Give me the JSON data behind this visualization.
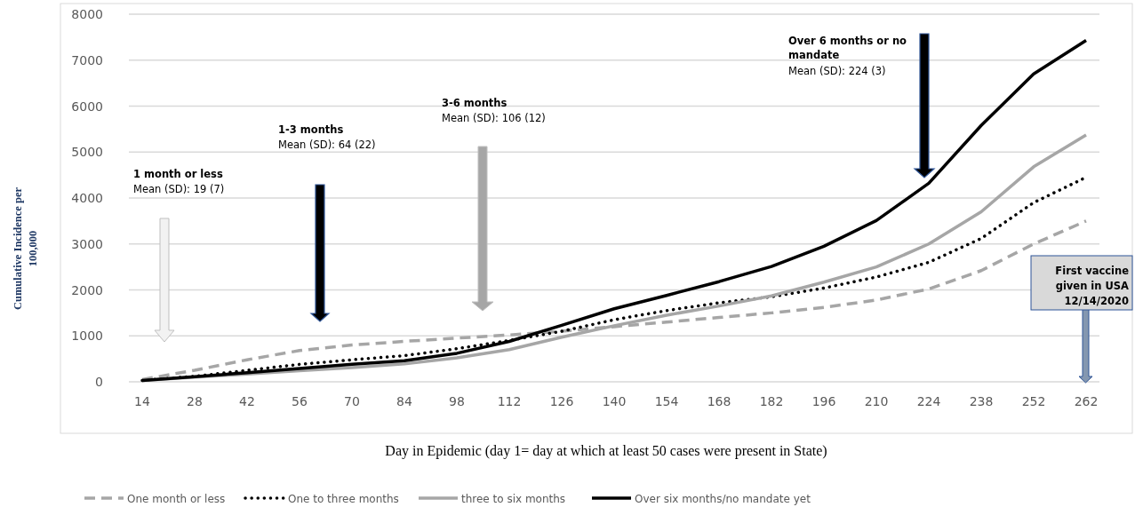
{
  "chart_data": {
    "type": "line",
    "xlabel": "Day in Epidemic (day 1= day at which at least 50 cases were present in State)",
    "ylabel": "Cumulative Incidence per 100,000",
    "categories": [
      "14",
      "28",
      "42",
      "56",
      "70",
      "84",
      "98",
      "112",
      "126",
      "140",
      "154",
      "168",
      "182",
      "196",
      "210",
      "224",
      "238",
      "252",
      "262"
    ],
    "series": [
      {
        "name": "One month or less",
        "color": "#a6a6a6",
        "line_style": "dashed",
        "values": [
          50,
          250,
          480,
          680,
          800,
          880,
          950,
          1020,
          1100,
          1200,
          1300,
          1400,
          1500,
          1620,
          1780,
          2020,
          2420,
          3000,
          3500
        ]
      },
      {
        "name": "One to three months",
        "color": "#000000",
        "line_style": "dotted",
        "values": [
          30,
          120,
          250,
          380,
          480,
          570,
          720,
          900,
          1100,
          1350,
          1550,
          1720,
          1850,
          2040,
          2280,
          2600,
          3120,
          3900,
          4450
        ]
      },
      {
        "name": "three to six months",
        "color": "#a6a6a6",
        "line_style": "solid",
        "values": [
          30,
          100,
          170,
          240,
          310,
          390,
          520,
          700,
          970,
          1220,
          1450,
          1650,
          1870,
          2170,
          2500,
          3000,
          3700,
          4680,
          5370
        ]
      },
      {
        "name": "Over six months/no mandate yet",
        "color": "#000000",
        "line_style": "solid",
        "values": [
          30,
          110,
          200,
          290,
          380,
          460,
          620,
          880,
          1230,
          1590,
          1880,
          2180,
          2510,
          2950,
          3510,
          4320,
          5580,
          6700,
          7430
        ]
      }
    ],
    "ylim": [
      0,
      8000
    ],
    "yticks": [
      0,
      1000,
      2000,
      3000,
      4000,
      5000,
      6000,
      7000,
      8000
    ],
    "grid": "y",
    "legend": "bottom",
    "marker": "none",
    "annotations": [
      "1 month or less",
      "Mean (SD): 19 (7)",
      "1-3 months",
      "Mean (SD): 64 (22)",
      "3-6 months",
      "Mean (SD): 106 (12)",
      "Over 6 months or no mandate",
      "Mean (SD): 224 (3)",
      "First vaccine given in USA 12/14/2020"
    ]
  }
}
